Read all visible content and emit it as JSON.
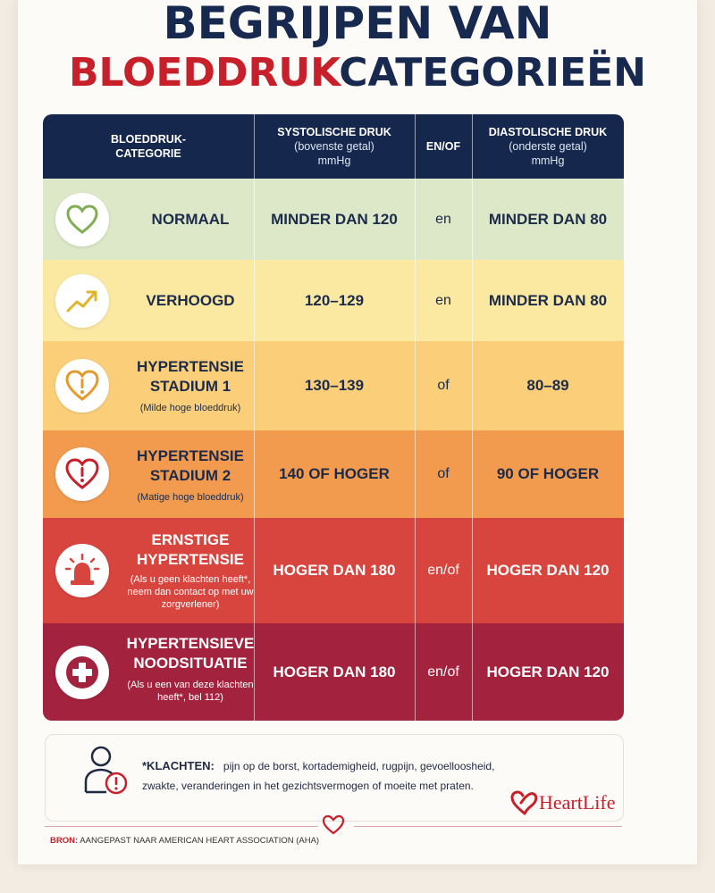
{
  "title": {
    "line1": "BEGRIJPEN VAN",
    "line2_red": "BLOEDDRUK",
    "line2_dark": "CATEGORIEËN"
  },
  "table": {
    "headers": {
      "category": [
        "BLOEDDRUK-",
        "CATEGORIE"
      ],
      "systolic": {
        "main": "SYSTOLISCHE DRUK",
        "sub1": "(bovenste getal)",
        "sub2": "mmHg"
      },
      "conj": "EN/OF",
      "diastolic": {
        "main": "DIASTOLISCHE DRUK",
        "sub1": "(onderste getal)",
        "sub2": "mmHg"
      }
    },
    "rows": [
      {
        "name1": "NORMAAL",
        "name2": "",
        "sub": "",
        "icon": "heart-outline-icon",
        "systolic": "MINDER DAN 120",
        "conj": "en",
        "diastolic": "MINDER DAN 80",
        "bg": "#dde8c8",
        "text": "#1c2b4a"
      },
      {
        "name1": "VERHOOGD",
        "name2": "",
        "sub": "",
        "icon": "trend-up-icon",
        "systolic": "120–129",
        "conj": "en",
        "diastolic": "MINDER DAN 80",
        "bg": "#fbe9a2",
        "text": "#1c2b4a"
      },
      {
        "name1": "HYPERTENSIE",
        "name2": "STADIUM 1",
        "sub": "(Milde hoge bloeddruk)",
        "icon": "heart-warning-icon",
        "systolic": "130–139",
        "conj": "of",
        "diastolic": "80–89",
        "bg": "#fbcf7a",
        "text": "#1c2b4a"
      },
      {
        "name1": "HYPERTENSIE",
        "name2": "STADIUM 2",
        "sub": "(Matige hoge bloeddruk)",
        "icon": "heart-alert-icon",
        "systolic": "140 OF HOGER",
        "conj": "of",
        "diastolic": "90 OF HOGER",
        "bg": "#f29a4e",
        "text": "#1c2b4a"
      },
      {
        "name1": "ERNSTIGE",
        "name2": "HYPERTENSIE",
        "sub": "(Als u geen klachten heeft*, neem dan contact op met uw zorgverlener)",
        "icon": "alarm-light-icon",
        "systolic": "HOGER DAN 180",
        "conj": "en/of",
        "diastolic": "HOGER DAN 120",
        "bg": "#d8453e",
        "text": "#ffffff"
      },
      {
        "name1": "HYPERTENSIEVE",
        "name2": "NOODSITUATIE",
        "sub": "(Als u een van deze klachten heeft*, bel 112)",
        "icon": "medical-cross-icon",
        "systolic": "HOGER DAN 180",
        "conj": "en/of",
        "diastolic": "HOGER DAN 120",
        "bg": "#a3223e",
        "text": "#ffffff"
      }
    ]
  },
  "note": {
    "label": "*KLACHTEN:",
    "line1": "pijn op de borst, kortademigheid, rugpijn, gevoelloosheid,",
    "line2": "zwakte, veranderingen in het gezichtsvermogen of moeite met praten.",
    "icon": "person-warning-icon"
  },
  "brand": {
    "name": "HeartLife",
    "icon": "heartlife-logo"
  },
  "footer": {
    "label": "BRON:",
    "text": "AANGEPAST NAAR AMERICAN HEART ASSOCIATION (AHA)"
  },
  "colors": {
    "navy": "#15274d",
    "red": "#c8202b"
  }
}
